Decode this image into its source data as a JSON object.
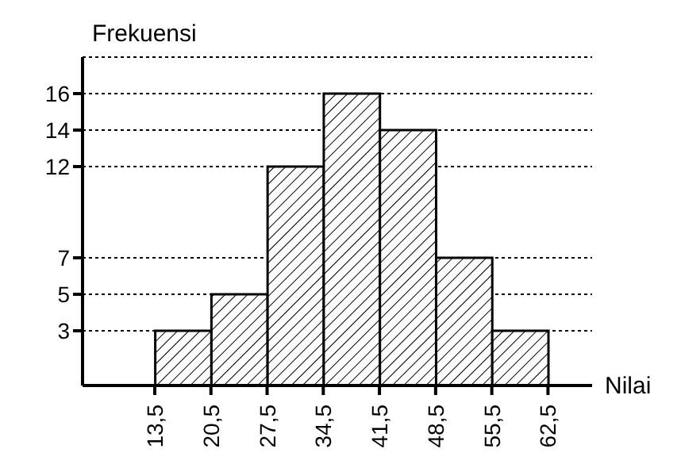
{
  "chart_data": {
    "type": "histogram",
    "xlabel": "Nilai",
    "ylabel": "Frekuensi",
    "bins": [
      13.5,
      20.5,
      27.5,
      34.5,
      41.5,
      48.5,
      55.5,
      62.5
    ],
    "values": [
      3,
      5,
      12,
      16,
      14,
      7,
      3
    ],
    "color": "#000000",
    "xlim": [
      4.5,
      68
    ],
    "xticks": [
      {
        "value": 13.5,
        "label": "13,5"
      },
      {
        "value": 20.5,
        "label": "20,5"
      },
      {
        "value": 27.5,
        "label": "27,5"
      },
      {
        "value": 34.5,
        "label": "34,5"
      },
      {
        "value": 41.5,
        "label": "41,5"
      },
      {
        "value": 48.5,
        "label": "48,5"
      },
      {
        "value": 55.5,
        "label": "55,5"
      },
      {
        "value": 62.5,
        "label": "62,5"
      }
    ],
    "ylim": [
      0,
      18
    ],
    "yticks": [
      3,
      5,
      7,
      12,
      14,
      16
    ],
    "grid": "y",
    "line_style": "dotted"
  }
}
